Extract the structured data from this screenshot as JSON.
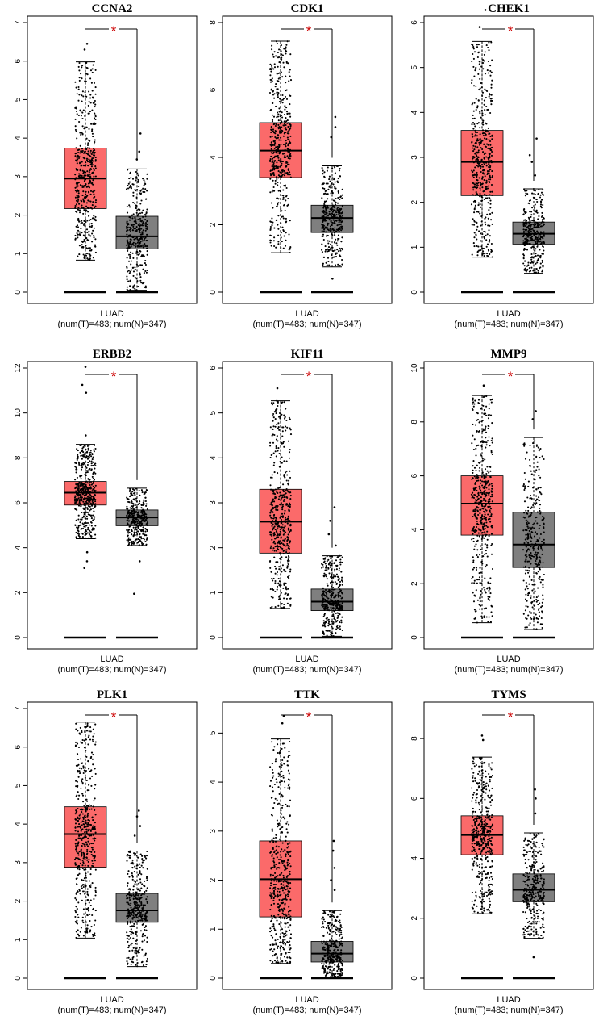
{
  "colors": {
    "tumor": "#fb6a6a",
    "normal": "#7f7f7f",
    "dots": "#000000",
    "star": "#cc0000",
    "frame": "#000000"
  },
  "chart_data": [
    {
      "type": "box",
      "title": "CCNA2",
      "xlabel": "LUAD",
      "xsub": "(num(T)=483; num(N)=347)",
      "significance": "*",
      "ylim": [
        0,
        7
      ],
      "yticks": [
        0,
        1,
        2,
        3,
        4,
        5,
        6,
        7
      ],
      "groups": [
        {
          "name": "T",
          "n": 483,
          "min": 0.83,
          "q1": 2.17,
          "median": 2.95,
          "q3": 3.74,
          "max": 5.98,
          "outliers": [
            6.45,
            6.3
          ]
        },
        {
          "name": "N",
          "n": 347,
          "min": 0.05,
          "q1": 1.12,
          "median": 1.45,
          "q3": 1.97,
          "max": 3.2,
          "outliers": [
            4.12,
            3.65,
            3.45
          ]
        }
      ]
    },
    {
      "type": "box",
      "title": "CDK1",
      "xlabel": "LUAD",
      "xsub": "(num(T)=483; num(N)=347)",
      "significance": "*",
      "ylim": [
        0,
        8
      ],
      "yticks": [
        0,
        2,
        4,
        6,
        8
      ],
      "groups": [
        {
          "name": "T",
          "n": 483,
          "min": 1.17,
          "q1": 3.4,
          "median": 4.2,
          "q3": 5.03,
          "max": 7.45,
          "outliers": []
        },
        {
          "name": "N",
          "n": 347,
          "min": 0.75,
          "q1": 1.77,
          "median": 2.2,
          "q3": 2.58,
          "max": 3.75,
          "outliers": [
            5.2,
            4.9,
            4.6,
            0.4
          ]
        }
      ]
    },
    {
      "type": "box",
      "title": "CHEK1",
      "xlabel": "LUAD",
      "xsub": "(num(T)=483; num(N)=347)",
      "significance": "*",
      "ylim": [
        0,
        6
      ],
      "yticks": [
        0,
        1,
        2,
        3,
        4,
        5,
        6
      ],
      "groups": [
        {
          "name": "T",
          "n": 483,
          "min": 0.78,
          "q1": 2.15,
          "median": 2.9,
          "q3": 3.6,
          "max": 5.58,
          "outliers": [
            6.28,
            5.9
          ]
        },
        {
          "name": "N",
          "n": 347,
          "min": 0.42,
          "q1": 1.07,
          "median": 1.3,
          "q3": 1.56,
          "max": 2.3,
          "outliers": [
            3.42,
            3.05,
            2.9,
            2.6
          ]
        }
      ]
    },
    {
      "type": "box",
      "title": "ERBB2",
      "xlabel": "LUAD",
      "xsub": "(num(T)=483; num(N)=347)",
      "significance": "*",
      "ylim": [
        0,
        12
      ],
      "yticks": [
        0,
        2,
        4,
        6,
        8,
        10,
        12
      ],
      "groups": [
        {
          "name": "T",
          "n": 483,
          "min": 4.4,
          "q1": 5.9,
          "median": 6.45,
          "q3": 6.95,
          "max": 8.6,
          "outliers": [
            12.05,
            11.25,
            10.9,
            9.0,
            3.8,
            3.4,
            3.1
          ]
        },
        {
          "name": "N",
          "n": 347,
          "min": 4.1,
          "q1": 4.98,
          "median": 5.35,
          "q3": 5.68,
          "max": 6.65,
          "outliers": [
            3.4,
            1.95
          ]
        }
      ]
    },
    {
      "type": "box",
      "title": "KIF11",
      "xlabel": "LUAD",
      "xsub": "(num(T)=483; num(N)=347)",
      "significance": "*",
      "ylim": [
        0,
        6
      ],
      "yticks": [
        0,
        1,
        2,
        3,
        4,
        5,
        6
      ],
      "groups": [
        {
          "name": "T",
          "n": 483,
          "min": 0.65,
          "q1": 1.88,
          "median": 2.58,
          "q3": 3.3,
          "max": 5.27,
          "outliers": [
            5.55
          ]
        },
        {
          "name": "N",
          "n": 347,
          "min": 0.03,
          "q1": 0.6,
          "median": 0.8,
          "q3": 1.08,
          "max": 1.82,
          "outliers": [
            2.9,
            2.6,
            2.3,
            2.05
          ]
        }
      ]
    },
    {
      "type": "box",
      "title": "MMP9",
      "xlabel": "LUAD",
      "xsub": "(num(T)=483; num(N)=347)",
      "significance": "*",
      "ylim": [
        0,
        10
      ],
      "yticks": [
        0,
        2,
        4,
        6,
        8,
        10
      ],
      "groups": [
        {
          "name": "T",
          "n": 483,
          "min": 0.55,
          "q1": 3.8,
          "median": 4.97,
          "q3": 6.0,
          "max": 8.98,
          "outliers": [
            9.35
          ]
        },
        {
          "name": "N",
          "n": 347,
          "min": 0.3,
          "q1": 2.6,
          "median": 3.45,
          "q3": 4.65,
          "max": 7.42,
          "outliers": [
            8.4,
            8.1
          ]
        }
      ]
    },
    {
      "type": "box",
      "title": "PLK1",
      "xlabel": "LUAD",
      "xsub": "(num(T)=483; num(N)=347)",
      "significance": "*",
      "ylim": [
        0,
        7
      ],
      "yticks": [
        0,
        1,
        2,
        3,
        4,
        5,
        6,
        7
      ],
      "groups": [
        {
          "name": "T",
          "n": 483,
          "min": 1.04,
          "q1": 2.88,
          "median": 3.74,
          "q3": 4.45,
          "max": 6.65,
          "outliers": []
        },
        {
          "name": "N",
          "n": 347,
          "min": 0.3,
          "q1": 1.45,
          "median": 1.76,
          "q3": 2.2,
          "max": 3.3,
          "outliers": [
            4.35,
            4.2,
            3.95,
            3.7
          ]
        }
      ]
    },
    {
      "type": "box",
      "title": "TTK",
      "xlabel": "LUAD",
      "xsub": "(num(T)=483; num(N)=347)",
      "significance": "*",
      "ylim": [
        0,
        5.5
      ],
      "yticks": [
        0,
        1,
        2,
        3,
        4,
        5
      ],
      "groups": [
        {
          "name": "T",
          "n": 483,
          "min": 0.3,
          "q1": 1.25,
          "median": 2.02,
          "q3": 2.8,
          "max": 4.88,
          "outliers": [
            5.35,
            5.2
          ]
        },
        {
          "name": "N",
          "n": 347,
          "min": 0.02,
          "q1": 0.33,
          "median": 0.5,
          "q3": 0.75,
          "max": 1.38,
          "outliers": [
            2.8,
            2.6,
            2.25,
            2.0,
            1.8
          ]
        }
      ]
    },
    {
      "type": "box",
      "title": "TYMS",
      "xlabel": "LUAD",
      "xsub": "(num(T)=483; num(N)=347)",
      "significance": "*",
      "ylim": [
        0,
        9
      ],
      "yticks": [
        0,
        2,
        4,
        6,
        8
      ],
      "groups": [
        {
          "name": "T",
          "n": 483,
          "min": 2.15,
          "q1": 4.12,
          "median": 4.78,
          "q3": 5.42,
          "max": 7.38,
          "outliers": [
            8.1,
            7.95
          ]
        },
        {
          "name": "N",
          "n": 347,
          "min": 1.33,
          "q1": 2.55,
          "median": 2.95,
          "q3": 3.48,
          "max": 4.85,
          "outliers": [
            6.3,
            6.0,
            5.5,
            0.7
          ]
        }
      ]
    }
  ]
}
